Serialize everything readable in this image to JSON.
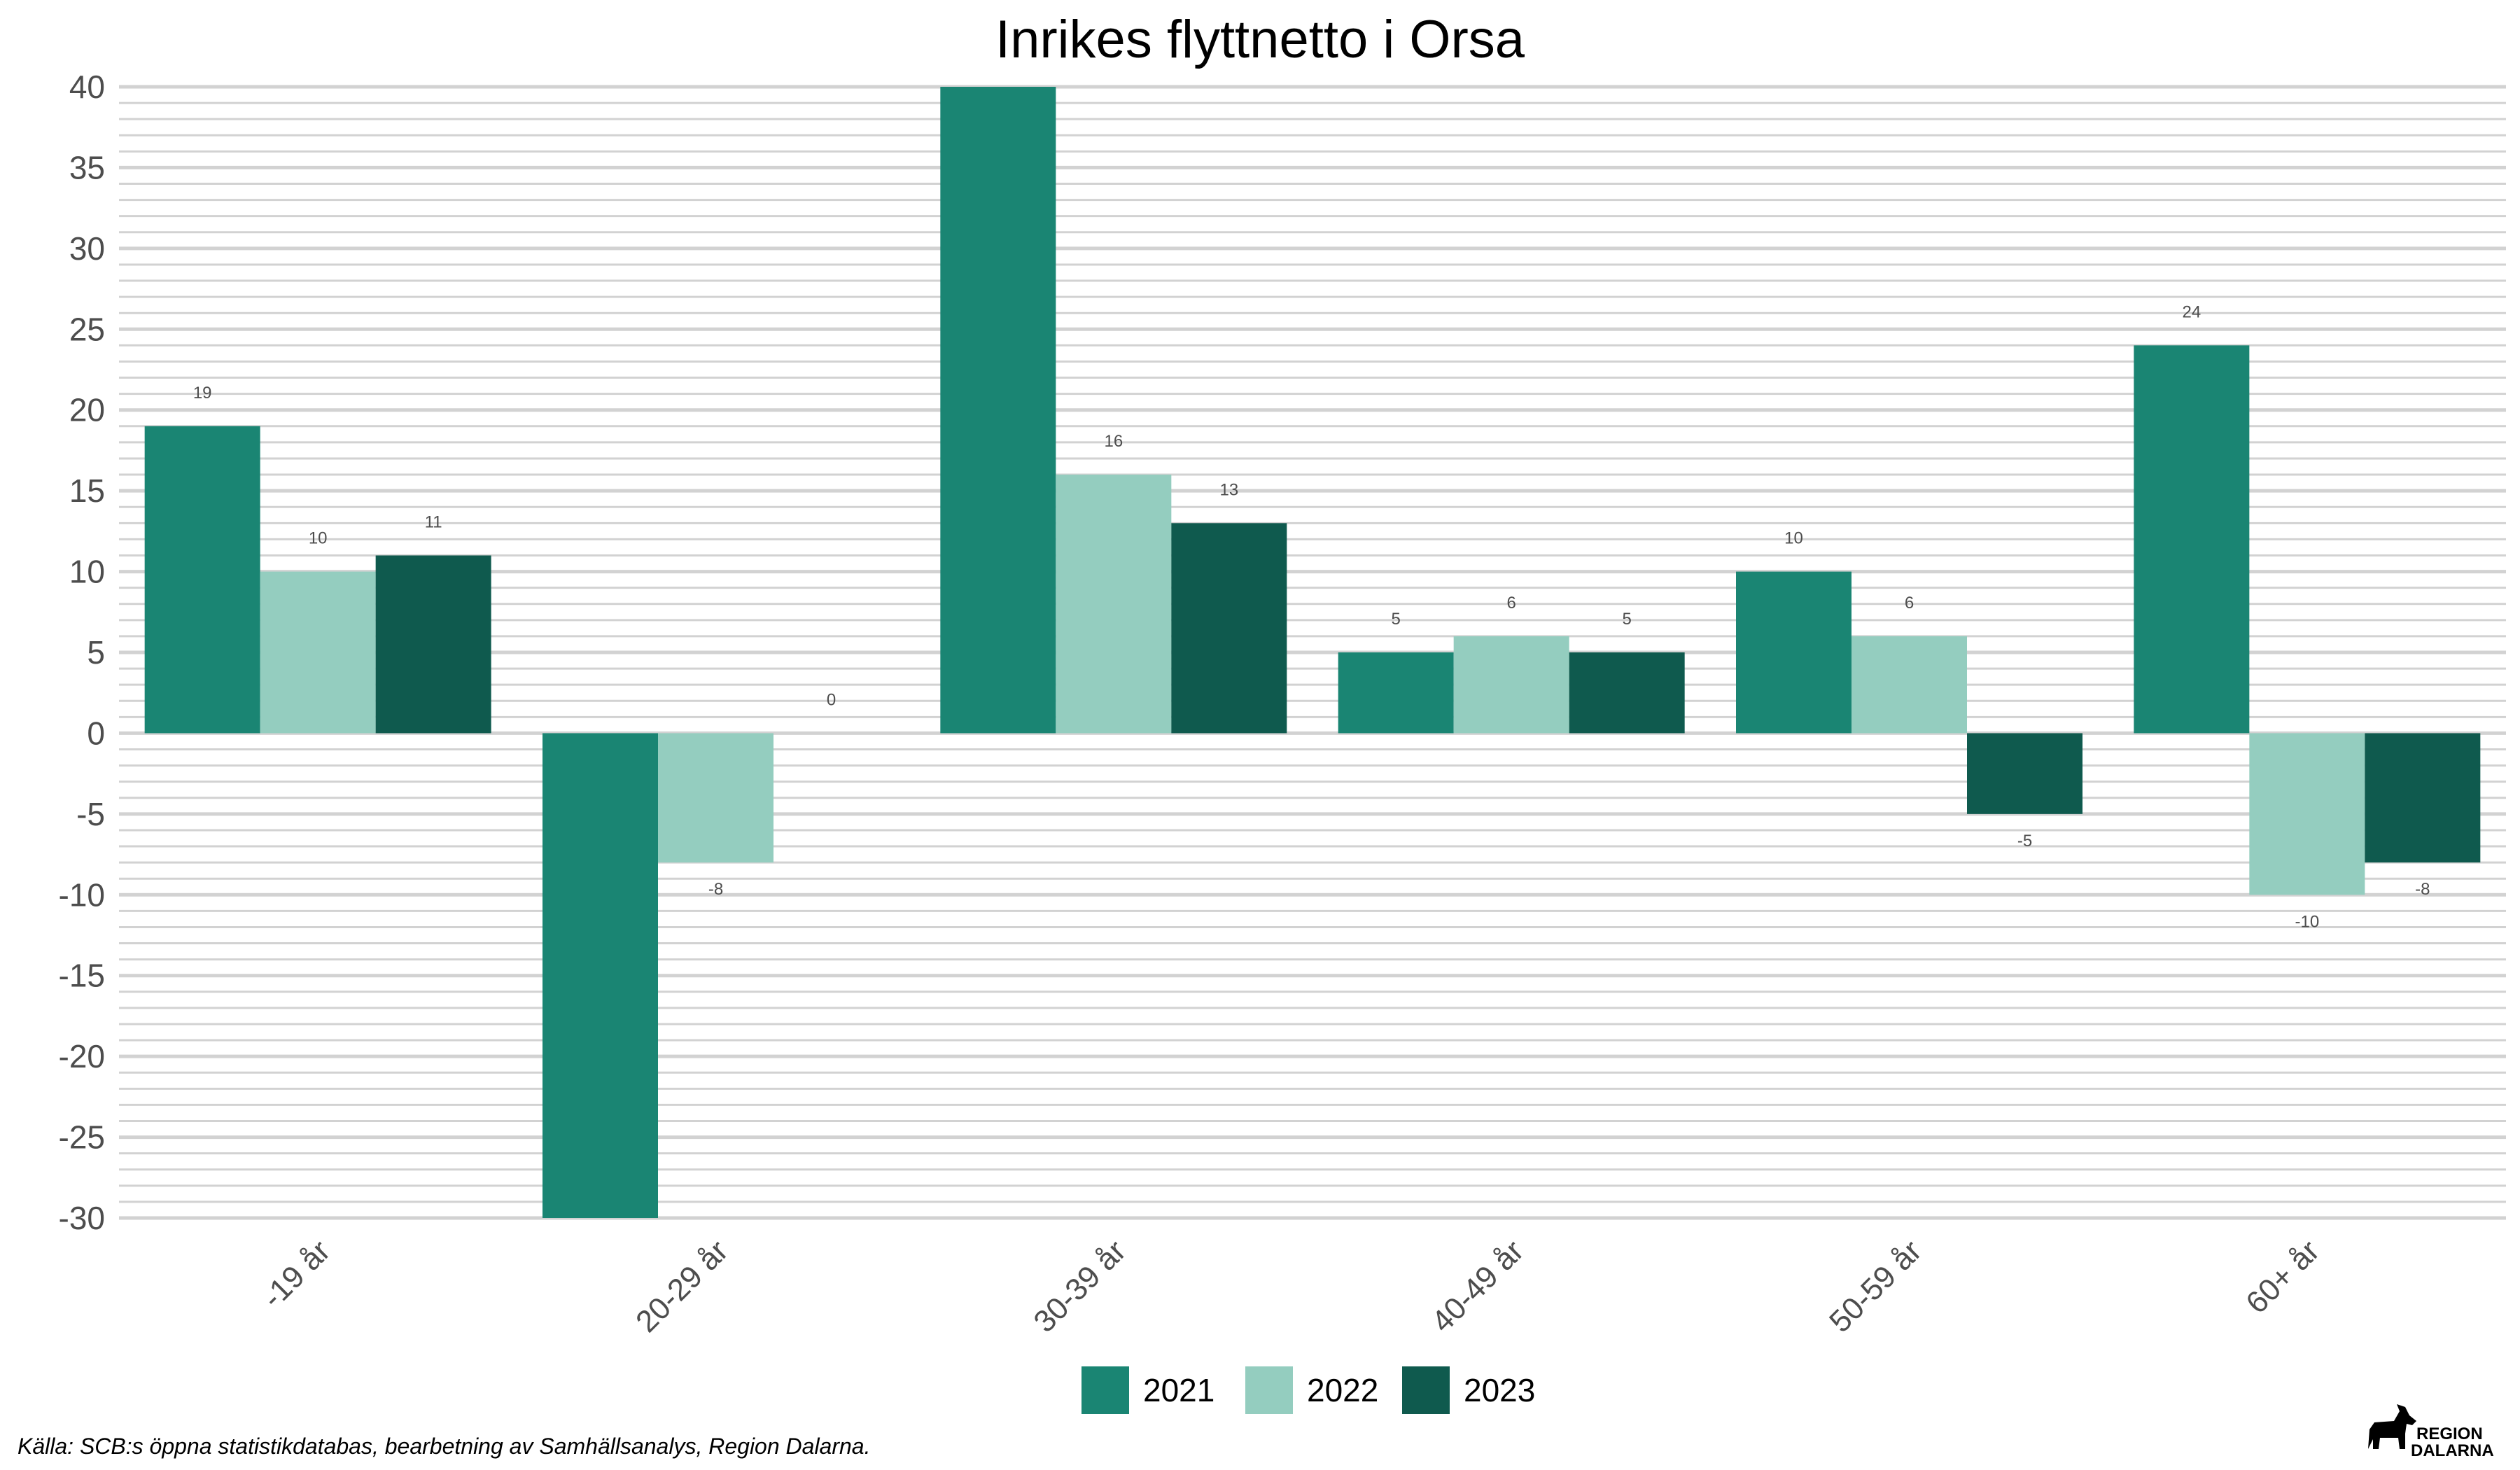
{
  "chart_data": {
    "type": "bar",
    "title": "Inrikes flyttnetto i Orsa",
    "xlabel": "",
    "ylabel": "",
    "categories": [
      "-19 år",
      "20-29 år",
      "30-39 år",
      "40-49 år",
      "50-59 år",
      "60+ år"
    ],
    "series": [
      {
        "name": "2021",
        "color": "#1a8573",
        "values": [
          19,
          -30,
          40,
          5,
          10,
          24
        ]
      },
      {
        "name": "2022",
        "color": "#94cdbf",
        "values": [
          10,
          -8,
          16,
          6,
          6,
          -10
        ]
      },
      {
        "name": "2023",
        "color": "#0f5a4e",
        "values": [
          11,
          0,
          13,
          5,
          -5,
          -8
        ]
      }
    ],
    "data_labels": {
      "2021": [
        "19",
        "",
        "",
        "5",
        "10",
        "24"
      ],
      "2022": [
        "10",
        "-8",
        "16",
        "6",
        "6",
        "-10"
      ],
      "2023": [
        "11",
        "0",
        "13",
        "5",
        "-5",
        "-8"
      ]
    },
    "ylim": [
      -30,
      40
    ],
    "yticks": [
      40,
      35,
      30,
      25,
      20,
      15,
      10,
      5,
      0,
      -5,
      -10,
      -15,
      -20,
      -25,
      -30
    ],
    "grid": true,
    "legend_position": "bottom"
  },
  "caption": "Källa: SCB:s öppna statistikdatabas, bearbetning av Samhällsanalys, Region Dalarna.",
  "logo": {
    "line1": "REGION",
    "line2": "DALARNA",
    "icon": "dalahorse-icon"
  }
}
